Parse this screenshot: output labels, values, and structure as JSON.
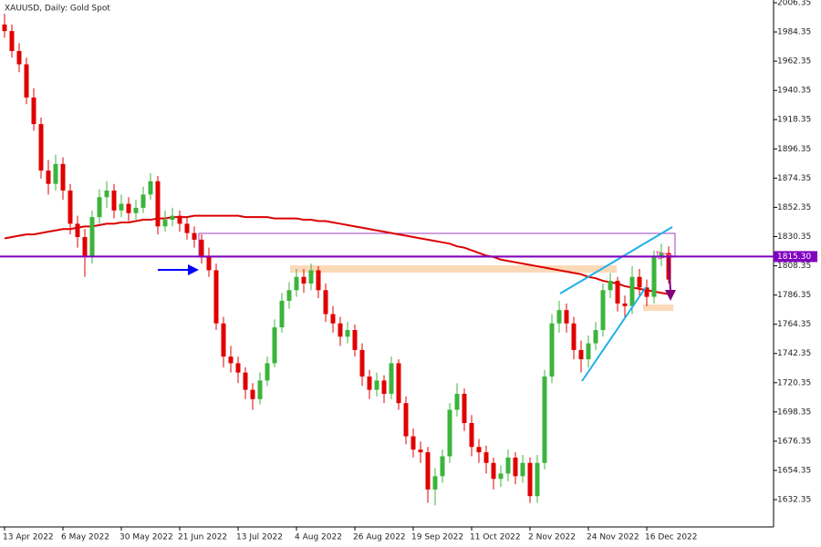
{
  "chart_data": {
    "type": "candlestick",
    "title": "XAUUSD, Daily:  Gold Spot",
    "categories": [
      "13 Apr 2022",
      null,
      null,
      null,
      null,
      null,
      null,
      null,
      "6 May 2022",
      null,
      null,
      null,
      null,
      null,
      null,
      null,
      "30 May 2022",
      null,
      null,
      null,
      null,
      null,
      null,
      null,
      "21 Jun 2022",
      null,
      null,
      null,
      null,
      null,
      null,
      null,
      "13 Jul 2022",
      null,
      null,
      null,
      null,
      null,
      null,
      null,
      "4 Aug 2022",
      null,
      null,
      null,
      null,
      null,
      null,
      null,
      "26 Aug 2022",
      null,
      null,
      null,
      null,
      null,
      null,
      null,
      "19 Sep 2022",
      null,
      null,
      null,
      null,
      null,
      null,
      null,
      "11 Oct 2022",
      null,
      null,
      null,
      null,
      null,
      null,
      null,
      "2 Nov 2022",
      null,
      null,
      null,
      null,
      null,
      null,
      null,
      "24 Nov 2022",
      null,
      null,
      null,
      null,
      null,
      null,
      null,
      "16 Dec 2022",
      null,
      null,
      null
    ],
    "open": [
      1990,
      1985,
      1970,
      1960,
      1935,
      1915,
      1880,
      1870,
      1885,
      1865,
      1840,
      1830,
      1815,
      1845,
      1860,
      1865,
      1850,
      1855,
      1848,
      1852,
      1862,
      1872,
      1838,
      1843,
      1846,
      1840,
      1833,
      1828,
      1815,
      1805,
      1765,
      1740,
      1735,
      1728,
      1715,
      1708,
      1722,
      1735,
      1762,
      1782,
      1790,
      1800,
      1795,
      1805,
      1790,
      1772,
      1765,
      1755,
      1760,
      1745,
      1725,
      1715,
      1722,
      1712,
      1735,
      1705,
      1680,
      1670,
      1668,
      1640,
      1650,
      1665,
      1700,
      1712,
      1690,
      1672,
      1668,
      1660,
      1648,
      1652,
      1664,
      1650,
      1660,
      1635,
      1660,
      1725,
      1765,
      1775,
      1765,
      1745,
      1738,
      1750,
      1760,
      1790,
      1797,
      1780,
      1778,
      1800,
      1792,
      1785,
      1815,
      1818
    ],
    "high": [
      1998,
      1990,
      1976,
      1965,
      1942,
      1920,
      1888,
      1892,
      1890,
      1870,
      1846,
      1836,
      1850,
      1866,
      1872,
      1870,
      1862,
      1860,
      1858,
      1868,
      1878,
      1876,
      1850,
      1852,
      1850,
      1845,
      1838,
      1832,
      1822,
      1810,
      1770,
      1748,
      1740,
      1732,
      1720,
      1728,
      1740,
      1768,
      1788,
      1796,
      1806,
      1806,
      1810,
      1808,
      1795,
      1778,
      1770,
      1766,
      1764,
      1750,
      1730,
      1728,
      1726,
      1740,
      1738,
      1710,
      1686,
      1676,
      1672,
      1656,
      1670,
      1705,
      1720,
      1716,
      1696,
      1678,
      1673,
      1664,
      1658,
      1670,
      1668,
      1666,
      1664,
      1666,
      1730,
      1772,
      1782,
      1780,
      1770,
      1752,
      1756,
      1766,
      1795,
      1803,
      1800,
      1786,
      1808,
      1806,
      1798,
      1820,
      1825,
      1823
    ],
    "low": [
      1980,
      1965,
      1954,
      1930,
      1910,
      1874,
      1862,
      1865,
      1858,
      1832,
      1822,
      1800,
      1810,
      1840,
      1852,
      1844,
      1845,
      1842,
      1843,
      1848,
      1858,
      1832,
      1834,
      1838,
      1834,
      1828,
      1822,
      1810,
      1800,
      1760,
      1732,
      1728,
      1720,
      1708,
      1700,
      1704,
      1718,
      1732,
      1758,
      1776,
      1785,
      1788,
      1790,
      1784,
      1766,
      1758,
      1748,
      1750,
      1740,
      1718,
      1708,
      1710,
      1705,
      1708,
      1700,
      1674,
      1664,
      1660,
      1630,
      1628,
      1645,
      1660,
      1695,
      1684,
      1665,
      1660,
      1652,
      1640,
      1642,
      1646,
      1644,
      1645,
      1630,
      1630,
      1655,
      1720,
      1758,
      1758,
      1738,
      1728,
      1732,
      1745,
      1755,
      1784,
      1774,
      1770,
      1772,
      1786,
      1778,
      1780,
      1808,
      1795
    ],
    "close": [
      1985,
      1970,
      1960,
      1935,
      1915,
      1880,
      1870,
      1885,
      1865,
      1840,
      1830,
      1815,
      1845,
      1860,
      1865,
      1850,
      1855,
      1848,
      1852,
      1862,
      1872,
      1838,
      1843,
      1846,
      1840,
      1833,
      1828,
      1815,
      1805,
      1765,
      1740,
      1735,
      1728,
      1715,
      1708,
      1722,
      1735,
      1762,
      1782,
      1790,
      1800,
      1795,
      1805,
      1790,
      1772,
      1765,
      1755,
      1760,
      1745,
      1725,
      1715,
      1722,
      1712,
      1735,
      1705,
      1680,
      1670,
      1668,
      1640,
      1650,
      1665,
      1700,
      1712,
      1690,
      1672,
      1668,
      1660,
      1648,
      1652,
      1664,
      1650,
      1660,
      1635,
      1660,
      1725,
      1765,
      1775,
      1765,
      1745,
      1738,
      1750,
      1760,
      1790,
      1797,
      1780,
      1778,
      1800,
      1792,
      1785,
      1815,
      1818,
      1798
    ],
    "ma_values": [
      1829,
      1830,
      1831,
      1832,
      1832,
      1833,
      1834,
      1835,
      1836,
      1836,
      1837,
      1838,
      1838,
      1839,
      1840,
      1840,
      1841,
      1841,
      1842,
      1843,
      1843,
      1844,
      1844,
      1845,
      1845,
      1845,
      1846,
      1846,
      1846,
      1846,
      1846,
      1846,
      1846,
      1845,
      1845,
      1845,
      1845,
      1844,
      1844,
      1844,
      1844,
      1843,
      1843,
      1842,
      1842,
      1841,
      1840,
      1839,
      1838,
      1837,
      1836,
      1835,
      1834,
      1833,
      1832,
      1831,
      1830,
      1829,
      1828,
      1827,
      1826,
      1825,
      1823,
      1822,
      1820,
      1818,
      1816,
      1815,
      1813,
      1812,
      1811,
      1810,
      1809,
      1808,
      1807,
      1806,
      1805,
      1804,
      1803,
      1802,
      1800,
      1799,
      1797,
      1796,
      1795,
      1793,
      1792,
      1791,
      1790,
      1789,
      1788,
      1787
    ],
    "ma_color": "#dd0000",
    "up_color": "#3cb43c",
    "down_color": "#e00000",
    "price_line": {
      "value": 1815.3,
      "label": "1815.30",
      "color": "#8000c0"
    },
    "ylim": [
      1611.8,
      2008.4
    ],
    "yticks": [
      2006.35,
      1984.35,
      1962.35,
      1940.35,
      1918.35,
      1896.35,
      1874.35,
      1852.35,
      1830.35,
      1808.35,
      1786.35,
      1764.35,
      1742.35,
      1720.35,
      1698.35,
      1676.35,
      1654.35,
      1632.35
    ]
  }
}
